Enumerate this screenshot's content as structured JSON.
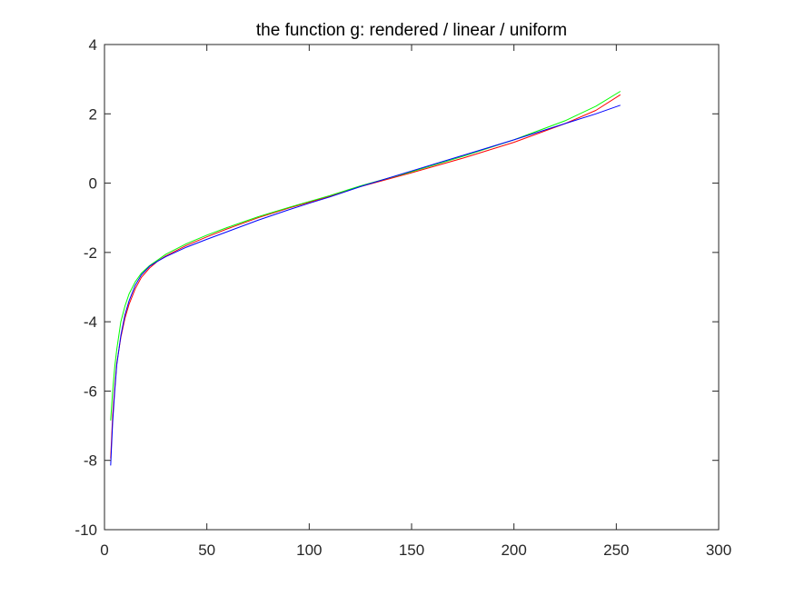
{
  "chart_data": {
    "type": "line",
    "title": "the function g: rendered / linear / uniform",
    "xlabel": "",
    "ylabel": "",
    "xlim": [
      0,
      300
    ],
    "ylim": [
      -10,
      4
    ],
    "x_ticks": [
      0,
      50,
      100,
      150,
      200,
      250,
      300
    ],
    "y_ticks": [
      -10,
      -8,
      -6,
      -4,
      -2,
      0,
      2,
      4
    ],
    "x_tick_labels": [
      "0",
      "50",
      "100",
      "150",
      "200",
      "250",
      "300"
    ],
    "y_tick_labels": [
      "-10",
      "-8",
      "-6",
      "-4",
      "-2",
      "0",
      "2",
      "4"
    ],
    "grid": false,
    "series": [
      {
        "color": "#ff0000",
        "x": [
          3,
          4,
          5,
          6,
          8,
          10,
          12,
          15,
          18,
          22,
          26,
          30,
          40,
          50,
          60,
          75,
          90,
          100,
          110,
          125,
          150,
          175,
          200,
          225,
          240,
          252
        ],
        "y": [
          -7.95,
          -6.7,
          -5.9,
          -5.2,
          -4.45,
          -3.9,
          -3.5,
          -3.05,
          -2.72,
          -2.45,
          -2.25,
          -2.1,
          -1.8,
          -1.55,
          -1.32,
          -1.0,
          -0.72,
          -0.55,
          -0.38,
          -0.1,
          0.3,
          0.72,
          1.18,
          1.72,
          2.1,
          2.55
        ]
      },
      {
        "color": "#00ff00",
        "x": [
          3,
          4,
          5,
          6,
          8,
          10,
          12,
          15,
          18,
          22,
          26,
          30,
          40,
          50,
          60,
          75,
          90,
          100,
          110,
          125,
          150,
          175,
          200,
          225,
          240,
          252
        ],
        "y": [
          -6.85,
          -6.0,
          -5.3,
          -4.8,
          -4.0,
          -3.55,
          -3.2,
          -2.85,
          -2.6,
          -2.38,
          -2.22,
          -2.05,
          -1.75,
          -1.5,
          -1.28,
          -0.97,
          -0.7,
          -0.53,
          -0.36,
          -0.08,
          0.33,
          0.77,
          1.25,
          1.8,
          2.22,
          2.65
        ]
      },
      {
        "color": "#0000ff",
        "x": [
          3,
          4,
          5,
          6,
          8,
          10,
          12,
          15,
          18,
          22,
          26,
          30,
          40,
          50,
          60,
          75,
          90,
          100,
          110,
          125,
          150,
          175,
          200,
          225,
          240,
          252
        ],
        "y": [
          -8.15,
          -6.9,
          -6.0,
          -5.25,
          -4.4,
          -3.8,
          -3.4,
          -2.95,
          -2.65,
          -2.4,
          -2.25,
          -2.12,
          -1.85,
          -1.62,
          -1.4,
          -1.07,
          -0.77,
          -0.58,
          -0.4,
          -0.1,
          0.35,
          0.8,
          1.25,
          1.72,
          2.0,
          2.25
        ]
      }
    ]
  }
}
